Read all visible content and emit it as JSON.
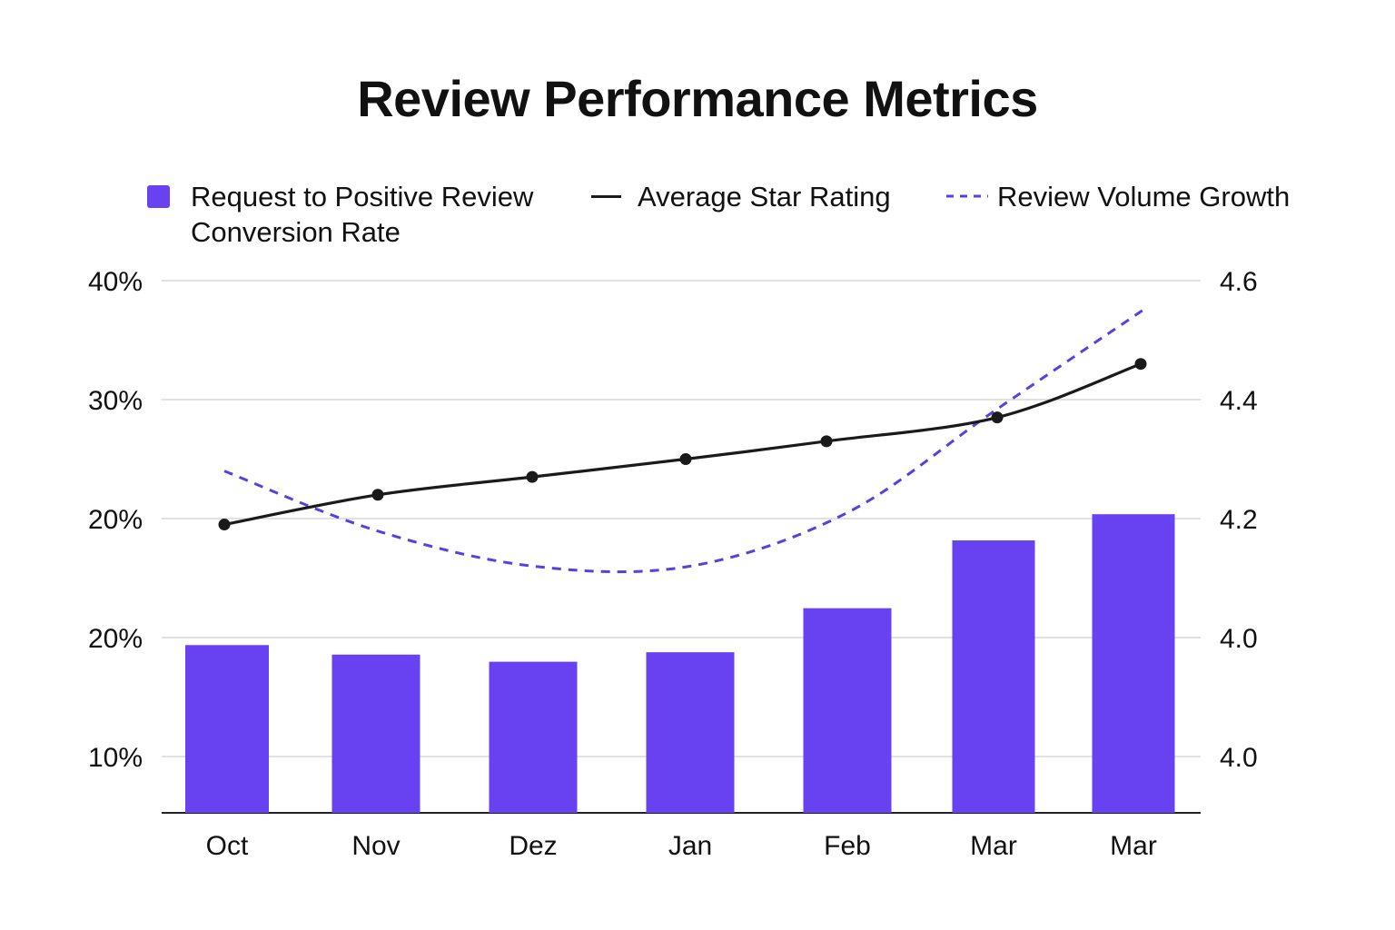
{
  "chart_data": {
    "type": "bar",
    "title": "Review Performance Metrics",
    "categories": [
      "Oct",
      "Nov",
      "Dez",
      "Jan",
      "Feb",
      "Mar",
      "Mar"
    ],
    "left_axis": {
      "tick_labels": [
        "40%",
        "30%",
        "20%",
        "20%",
        "10%"
      ]
    },
    "right_axis": {
      "tick_labels": [
        "4.6",
        "4.4",
        "4.2",
        "4.0",
        "4.0"
      ]
    },
    "series": [
      {
        "name": "Request to Positive Review Conversion Rate",
        "kind": "bar",
        "axis": "left",
        "color": "#6842f0",
        "values": [
          19.4,
          18.6,
          18.0,
          18.8,
          22.5,
          28.2,
          30.4
        ]
      },
      {
        "name": "Average Star Rating",
        "kind": "line",
        "axis": "right",
        "color": "#1a1a1a",
        "values": [
          4.19,
          4.24,
          4.27,
          4.3,
          4.33,
          4.37,
          4.46
        ]
      },
      {
        "name": "Review Volume Growth",
        "kind": "dashed-line",
        "axis": "right",
        "color": "#5a3fe0",
        "values": [
          4.28,
          4.18,
          4.12,
          4.12,
          4.21,
          4.38,
          4.55
        ]
      }
    ],
    "legend_position": "top",
    "grid": "horizontal"
  },
  "legend": {
    "bar_label_line1": "Request to Positive Review",
    "bar_label_line2": "Conversion Rate",
    "line_label": "Average Star Rating",
    "dashed_label": "Review Volume Growth"
  }
}
